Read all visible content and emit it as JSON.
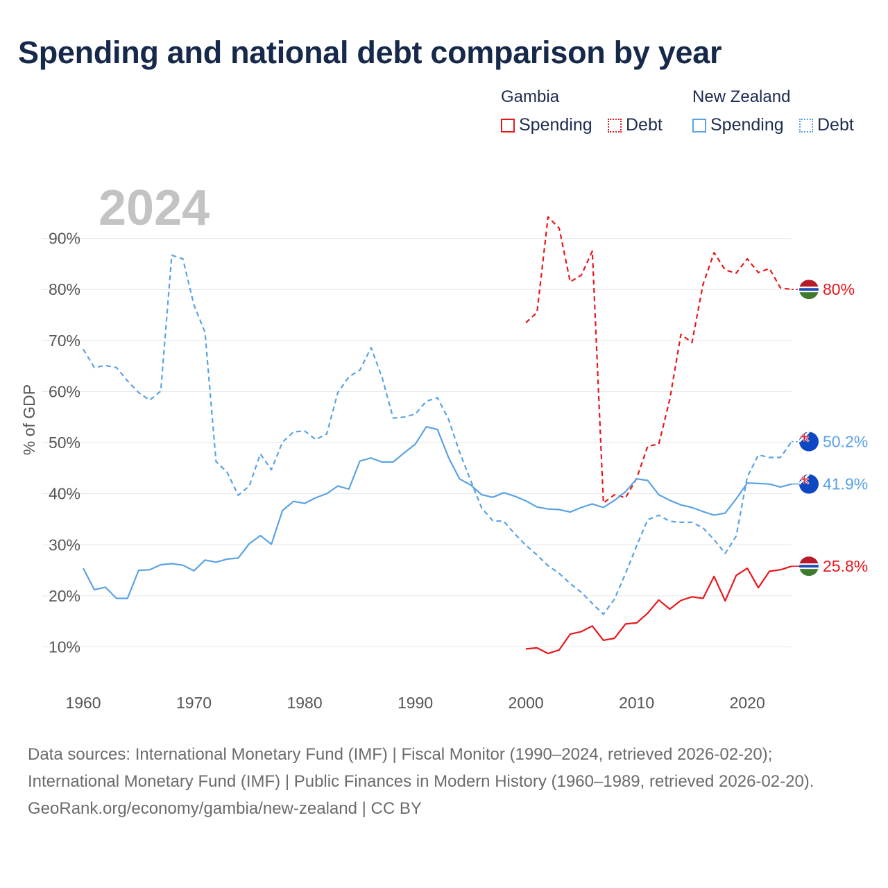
{
  "title": "Spending and national debt comparison by year",
  "legend": {
    "groups": [
      {
        "name": "Gambia",
        "color": "#e8161b",
        "items": [
          {
            "label": "Spending",
            "style": "solid"
          },
          {
            "label": "Debt",
            "style": "dotted"
          }
        ]
      },
      {
        "name": "New Zealand",
        "color": "#5aa2e4",
        "items": [
          {
            "label": "Spending",
            "style": "solid"
          },
          {
            "label": "Debt",
            "style": "dotted"
          }
        ]
      }
    ]
  },
  "chart_data": {
    "type": "line",
    "year_label": "2024",
    "ylabel": "% of GDP",
    "xlim": [
      1960,
      2024
    ],
    "ylim": [
      3,
      100
    ],
    "x_ticks": [
      1960,
      1970,
      1980,
      1990,
      2000,
      2010,
      2020
    ],
    "y_ticks": [
      10,
      20,
      30,
      40,
      50,
      60,
      70,
      80,
      90
    ],
    "y_tick_labels": [
      "10%",
      "20%",
      "30%",
      "40%",
      "50%",
      "60%",
      "70%",
      "80%",
      "90%"
    ],
    "series": [
      {
        "name": "Gambia Spending",
        "country": "Gambia",
        "color": "#e8161b",
        "dashed": false,
        "x": [
          2000,
          2001,
          2002,
          2003,
          2004,
          2005,
          2006,
          2007,
          2008,
          2009,
          2010,
          2011,
          2012,
          2013,
          2014,
          2015,
          2016,
          2017,
          2018,
          2019,
          2020,
          2021,
          2022,
          2023,
          2024
        ],
        "values": [
          9.6,
          9.8,
          8.7,
          9.4,
          12.5,
          13,
          14.1,
          11.3,
          11.7,
          14.5,
          14.7,
          16.6,
          19.2,
          17.4,
          19.1,
          19.8,
          19.5,
          23.8,
          19,
          24,
          25.4,
          21.6,
          24.8,
          25.1,
          25.8
        ],
        "end_label": "25.8%"
      },
      {
        "name": "Gambia Debt",
        "country": "Gambia",
        "color": "#e8161b",
        "dashed": true,
        "x": [
          2000,
          2001,
          2002,
          2003,
          2004,
          2005,
          2006,
          2007,
          2008,
          2009,
          2010,
          2011,
          2012,
          2013,
          2014,
          2015,
          2016,
          2017,
          2018,
          2019,
          2020,
          2021,
          2022,
          2023,
          2024
        ],
        "values": [
          73.5,
          75.5,
          94.2,
          92,
          81.5,
          82.8,
          87.5,
          38.2,
          39.8,
          39.2,
          43,
          49.3,
          49.7,
          58.5,
          71.2,
          69.6,
          81,
          87.2,
          83.8,
          83.2,
          86,
          83.3,
          84.1,
          80.3,
          80
        ],
        "end_label": "80%"
      },
      {
        "name": "New Zealand Spending",
        "country": "New Zealand",
        "color": "#5aa2e4",
        "dashed": false,
        "x": [
          1960,
          1961,
          1962,
          1963,
          1964,
          1965,
          1966,
          1967,
          1968,
          1969,
          1970,
          1971,
          1972,
          1973,
          1974,
          1975,
          1976,
          1977,
          1978,
          1979,
          1980,
          1981,
          1982,
          1983,
          1984,
          1985,
          1986,
          1987,
          1988,
          1989,
          1990,
          1991,
          1992,
          1993,
          1994,
          1995,
          1996,
          1997,
          1998,
          1999,
          2000,
          2001,
          2002,
          2003,
          2004,
          2005,
          2006,
          2007,
          2008,
          2009,
          2010,
          2011,
          2012,
          2013,
          2014,
          2015,
          2016,
          2017,
          2018,
          2019,
          2020,
          2021,
          2022,
          2023,
          2024
        ],
        "values": [
          25.4,
          21.2,
          21.7,
          19.5,
          19.5,
          25,
          25.1,
          26.1,
          26.3,
          26,
          24.9,
          27,
          26.6,
          27.2,
          27.4,
          30.2,
          31.8,
          30.1,
          36.7,
          38.5,
          38.1,
          39.2,
          40,
          41.5,
          40.9,
          46.4,
          47,
          46.2,
          46.2,
          48,
          49.7,
          53.1,
          52.6,
          47.1,
          42.9,
          41.7,
          39.8,
          39.3,
          40.2,
          39.5,
          38.6,
          37.4,
          37,
          36.9,
          36.4,
          37.3,
          38,
          37.3,
          38.7,
          40.4,
          42.9,
          42.6,
          39.8,
          38.7,
          37.8,
          37.3,
          36.5,
          35.8,
          36.2,
          39,
          42.1,
          42,
          41.9,
          41.3,
          41.9
        ],
        "end_label": "41.9%"
      },
      {
        "name": "New Zealand Debt",
        "country": "New Zealand",
        "color": "#5aa2e4",
        "dashed": true,
        "x": [
          1960,
          1961,
          1962,
          1963,
          1964,
          1965,
          1966,
          1967,
          1968,
          1969,
          1970,
          1971,
          1972,
          1973,
          1974,
          1975,
          1976,
          1977,
          1978,
          1979,
          1980,
          1981,
          1982,
          1983,
          1984,
          1985,
          1986,
          1987,
          1988,
          1989,
          1990,
          1991,
          1992,
          1993,
          1994,
          1995,
          1996,
          1997,
          1998,
          1999,
          2000,
          2001,
          2002,
          2003,
          2004,
          2005,
          2006,
          2007,
          2008,
          2009,
          2010,
          2011,
          2012,
          2013,
          2014,
          2015,
          2016,
          2017,
          2018,
          2019,
          2020,
          2021,
          2022,
          2023,
          2024
        ],
        "values": [
          68.3,
          64.7,
          65.1,
          64.7,
          62.1,
          59.8,
          58.3,
          60.1,
          86.7,
          86,
          77,
          71.6,
          46.3,
          44.2,
          39.7,
          41.5,
          47.8,
          44.7,
          50.1,
          52.1,
          52.3,
          50.6,
          51.7,
          59.8,
          62.9,
          64.2,
          68.6,
          62.8,
          54.8,
          55,
          55.6,
          58.1,
          58.8,
          54.6,
          48.2,
          42.6,
          37.2,
          34.7,
          34.6,
          32.1,
          29.9,
          28,
          25.9,
          24.4,
          22.4,
          20.7,
          18.5,
          16.4,
          19.4,
          24.4,
          29.8,
          34.9,
          35.8,
          34.6,
          34.4,
          34.4,
          33.3,
          31,
          28.3,
          31.7,
          43.3,
          47.6,
          47.1,
          47.1,
          50.2
        ],
        "end_label": "50.2%"
      }
    ]
  },
  "footer": {
    "sources": "Data sources: International Monetary Fund (IMF) | Fiscal Monitor (1990–2024, retrieved 2026-02-20); International Monetary Fund (IMF) | Public Finances in Modern History (1960–1989, retrieved 2026-02-20).",
    "attribution": "GeoRank.org/economy/gambia/new-zealand | CC BY"
  }
}
